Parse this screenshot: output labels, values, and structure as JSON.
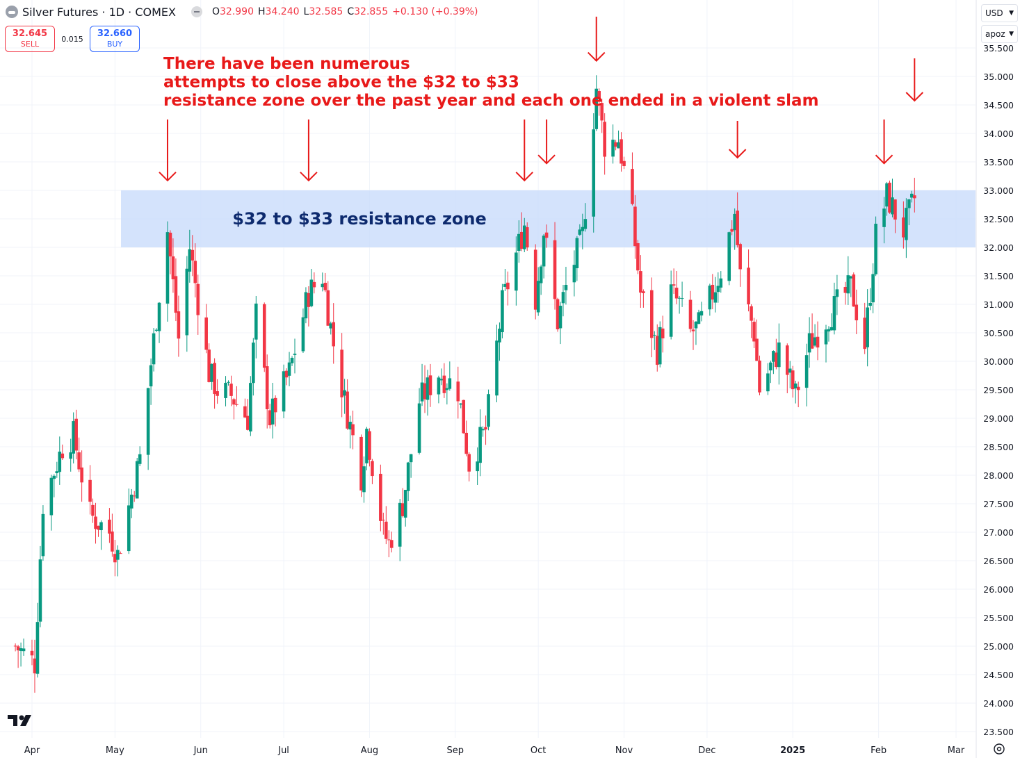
{
  "header": {
    "symbol": "Silver Futures · 1D · COMEX",
    "open_label": "O",
    "open": "32.990",
    "high_label": "H",
    "high": "34.240",
    "low_label": "L",
    "low": "32.585",
    "close_label": "C",
    "close": "32.855",
    "change": "+0.130 (+0.39%)"
  },
  "trade": {
    "sell_price": "32.645",
    "sell_label": "SELL",
    "spread": "0.015",
    "buy_price": "32.660",
    "buy_label": "BUY"
  },
  "controls": {
    "currency": "USD",
    "unit": "apoz"
  },
  "colors": {
    "up": "#089981",
    "down": "#f23645",
    "zone": "#c9dcfb",
    "annotation": "#e81919",
    "zone_text": "#0d2a6e"
  },
  "icons": [
    "symbol-icon",
    "collapse-icon",
    "chevron-down-icon",
    "tradingview-logo-icon",
    "settings-gear-icon"
  ],
  "chart_data": {
    "type": "candlestick",
    "y_axis": {
      "min": 23.5,
      "max": 35.5,
      "position": "right",
      "ticks": [
        "35.500",
        "35.000",
        "34.500",
        "34.000",
        "33.500",
        "33.000",
        "32.500",
        "32.000",
        "31.500",
        "31.000",
        "30.500",
        "30.000",
        "29.500",
        "29.000",
        "28.500",
        "28.000",
        "27.500",
        "27.000",
        "26.500",
        "26.000",
        "25.500",
        "25.000",
        "24.500",
        "24.000",
        "23.500"
      ]
    },
    "x_axis": {
      "ticks": [
        {
          "label": "Apr",
          "date": "2024-04-01"
        },
        {
          "label": "May",
          "date": "2024-05-01"
        },
        {
          "label": "Jun",
          "date": "2024-06-01"
        },
        {
          "label": "Jul",
          "date": "2024-07-01"
        },
        {
          "label": "Aug",
          "date": "2024-08-01"
        },
        {
          "label": "Sep",
          "date": "2024-09-01"
        },
        {
          "label": "Oct",
          "date": "2024-10-01"
        },
        {
          "label": "Nov",
          "date": "2024-11-01"
        },
        {
          "label": "Dec",
          "date": "2024-12-01"
        },
        {
          "label": "2025",
          "date": "2025-01-01"
        },
        {
          "label": "Feb",
          "date": "2025-02-01"
        },
        {
          "label": "Mar",
          "date": "2025-03-01"
        }
      ]
    },
    "grid": true,
    "resistance_zone": {
      "low": 32.0,
      "high": 33.0,
      "label": "$32 to $33 resistance zone"
    },
    "annotation": "There have been numerous attempts to close above the $32 to $33 resistance zone over the past year and each one ended in a violent slam",
    "arrows": [
      {
        "date": "2024-05-20",
        "value": 33.1
      },
      {
        "date": "2024-07-10",
        "value": 33.1
      },
      {
        "date": "2024-09-26",
        "value": 33.1
      },
      {
        "date": "2024-10-04",
        "value": 33.4
      },
      {
        "date": "2024-10-22",
        "value": 35.2
      },
      {
        "date": "2024-12-12",
        "value": 33.5
      },
      {
        "date": "2025-02-03",
        "value": 33.4
      },
      {
        "date": "2025-02-14",
        "value": 34.5
      }
    ],
    "anchors": [
      {
        "date": "2024-03-26",
        "value": 25.0
      },
      {
        "date": "2024-04-02",
        "value": 24.7
      },
      {
        "date": "2024-04-05",
        "value": 27.5
      },
      {
        "date": "2024-04-12",
        "value": 28.5
      },
      {
        "date": "2024-04-16",
        "value": 28.7
      },
      {
        "date": "2024-04-22",
        "value": 27.3
      },
      {
        "date": "2024-04-29",
        "value": 27.0
      },
      {
        "date": "2024-05-02",
        "value": 26.6
      },
      {
        "date": "2024-05-10",
        "value": 28.3
      },
      {
        "date": "2024-05-17",
        "value": 31.2
      },
      {
        "date": "2024-05-20",
        "value": 32.3
      },
      {
        "date": "2024-05-24",
        "value": 30.4
      },
      {
        "date": "2024-05-28",
        "value": 32.0
      },
      {
        "date": "2024-06-04",
        "value": 29.8
      },
      {
        "date": "2024-06-07",
        "value": 29.5
      },
      {
        "date": "2024-06-12",
        "value": 29.4
      },
      {
        "date": "2024-06-18",
        "value": 29.0
      },
      {
        "date": "2024-06-21",
        "value": 30.8
      },
      {
        "date": "2024-06-26",
        "value": 29.0
      },
      {
        "date": "2024-07-03",
        "value": 29.8
      },
      {
        "date": "2024-07-10",
        "value": 31.2
      },
      {
        "date": "2024-07-15",
        "value": 31.5
      },
      {
        "date": "2024-07-19",
        "value": 30.3
      },
      {
        "date": "2024-07-23",
        "value": 29.3
      },
      {
        "date": "2024-07-29",
        "value": 28.0
      },
      {
        "date": "2024-07-31",
        "value": 28.8
      },
      {
        "date": "2024-08-06",
        "value": 27.0
      },
      {
        "date": "2024-08-08",
        "value": 26.8
      },
      {
        "date": "2024-08-13",
        "value": 27.5
      },
      {
        "date": "2024-08-19",
        "value": 29.3
      },
      {
        "date": "2024-08-26",
        "value": 29.8
      },
      {
        "date": "2024-09-02",
        "value": 29.5
      },
      {
        "date": "2024-09-06",
        "value": 28.2
      },
      {
        "date": "2024-09-12",
        "value": 28.8
      },
      {
        "date": "2024-09-18",
        "value": 31.0
      },
      {
        "date": "2024-09-26",
        "value": 32.4
      },
      {
        "date": "2024-09-30",
        "value": 31.1
      },
      {
        "date": "2024-10-03",
        "value": 32.3
      },
      {
        "date": "2024-10-08",
        "value": 30.7
      },
      {
        "date": "2024-10-11",
        "value": 31.3
      },
      {
        "date": "2024-10-17",
        "value": 32.2
      },
      {
        "date": "2024-10-22",
        "value": 34.8
      },
      {
        "date": "2024-10-25",
        "value": 33.8
      },
      {
        "date": "2024-10-30",
        "value": 33.9
      },
      {
        "date": "2024-11-04",
        "value": 32.5
      },
      {
        "date": "2024-11-07",
        "value": 31.2
      },
      {
        "date": "2024-11-13",
        "value": 30.2
      },
      {
        "date": "2024-11-18",
        "value": 31.2
      },
      {
        "date": "2024-11-21",
        "value": 31.0
      },
      {
        "date": "2024-11-25",
        "value": 30.5
      },
      {
        "date": "2024-11-28",
        "value": 30.6
      },
      {
        "date": "2024-12-03",
        "value": 31.2
      },
      {
        "date": "2024-12-06",
        "value": 31.6
      },
      {
        "date": "2024-12-11",
        "value": 32.6
      },
      {
        "date": "2024-12-13",
        "value": 31.5
      },
      {
        "date": "2024-12-18",
        "value": 30.5
      },
      {
        "date": "2024-12-20",
        "value": 29.5
      },
      {
        "date": "2024-12-27",
        "value": 30.2
      },
      {
        "date": "2025-01-02",
        "value": 29.4
      },
      {
        "date": "2025-01-07",
        "value": 30.3
      },
      {
        "date": "2025-01-14",
        "value": 30.8
      },
      {
        "date": "2025-01-17",
        "value": 31.0
      },
      {
        "date": "2025-01-22",
        "value": 31.3
      },
      {
        "date": "2025-01-27",
        "value": 30.3
      },
      {
        "date": "2025-01-31",
        "value": 32.2
      },
      {
        "date": "2025-02-04",
        "value": 32.9
      },
      {
        "date": "2025-02-10",
        "value": 32.3
      },
      {
        "date": "2025-02-14",
        "value": 32.855
      }
    ]
  }
}
